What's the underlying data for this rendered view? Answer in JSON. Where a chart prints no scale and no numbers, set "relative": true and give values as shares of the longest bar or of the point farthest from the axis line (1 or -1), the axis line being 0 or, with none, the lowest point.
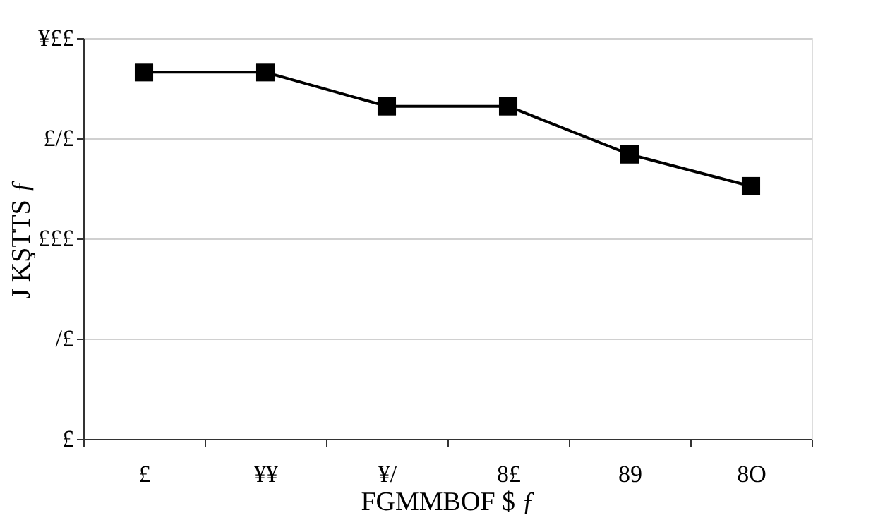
{
  "chart_data": {
    "type": "line",
    "xlabel": "FGMMBOF $ ƒ",
    "ylabel": "J KŞTTS ƒ",
    "categories": [
      "£",
      "¥¥",
      "¥/",
      "8£",
      "89",
      "8O"
    ],
    "relative": true,
    "series": [
      {
        "color": "#000000",
        "values": [
          1,
          1,
          0.907,
          0.907,
          0.776,
          0.689
        ]
      }
    ],
    "annotations": [
      "¥££",
      "£/£",
      "£££",
      "/£",
      "£"
    ],
    "grid": "y",
    "marker": "square",
    "line_style": "solid",
    "legend": false
  }
}
